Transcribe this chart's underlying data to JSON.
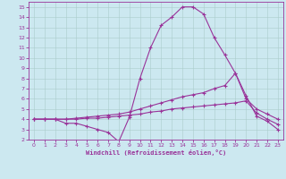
{
  "xlabel": "Windchill (Refroidissement éolien,°C)",
  "bg_color": "#cce8f0",
  "line_color": "#993399",
  "grid_color": "#aacccc",
  "xlim": [
    -0.5,
    23.5
  ],
  "ylim": [
    2,
    15.5
  ],
  "xticks": [
    0,
    1,
    2,
    3,
    4,
    5,
    6,
    7,
    8,
    9,
    10,
    11,
    12,
    13,
    14,
    15,
    16,
    17,
    18,
    19,
    20,
    21,
    22,
    23
  ],
  "yticks": [
    2,
    3,
    4,
    5,
    6,
    7,
    8,
    9,
    10,
    11,
    12,
    13,
    14,
    15
  ],
  "line1_x": [
    0,
    1,
    2,
    3,
    4,
    5,
    6,
    7,
    8,
    9,
    10,
    11,
    12,
    13,
    14,
    15,
    16,
    17,
    18,
    19,
    20,
    21,
    22,
    23
  ],
  "line1_y": [
    4.0,
    4.0,
    4.0,
    3.6,
    3.6,
    3.3,
    3.0,
    2.7,
    1.8,
    4.2,
    8.0,
    11.0,
    13.2,
    14.0,
    15.0,
    15.0,
    14.3,
    12.0,
    10.3,
    8.5,
    6.3,
    4.3,
    3.8,
    3.0
  ],
  "line2_x": [
    0,
    1,
    2,
    3,
    4,
    5,
    6,
    7,
    8,
    9,
    10,
    11,
    12,
    13,
    14,
    15,
    16,
    17,
    18,
    19,
    20,
    21,
    22,
    23
  ],
  "line2_y": [
    4.0,
    4.0,
    4.0,
    4.0,
    4.1,
    4.2,
    4.3,
    4.4,
    4.5,
    4.7,
    5.0,
    5.3,
    5.6,
    5.9,
    6.2,
    6.4,
    6.6,
    7.0,
    7.3,
    8.5,
    6.0,
    5.0,
    4.5,
    4.0
  ],
  "line3_x": [
    0,
    1,
    2,
    3,
    4,
    5,
    6,
    7,
    8,
    9,
    10,
    11,
    12,
    13,
    14,
    15,
    16,
    17,
    18,
    19,
    20,
    21,
    22,
    23
  ],
  "line3_y": [
    4.0,
    4.0,
    4.0,
    4.0,
    4.0,
    4.1,
    4.1,
    4.2,
    4.3,
    4.4,
    4.5,
    4.7,
    4.8,
    5.0,
    5.1,
    5.2,
    5.3,
    5.4,
    5.5,
    5.6,
    5.8,
    4.6,
    4.0,
    3.5
  ]
}
